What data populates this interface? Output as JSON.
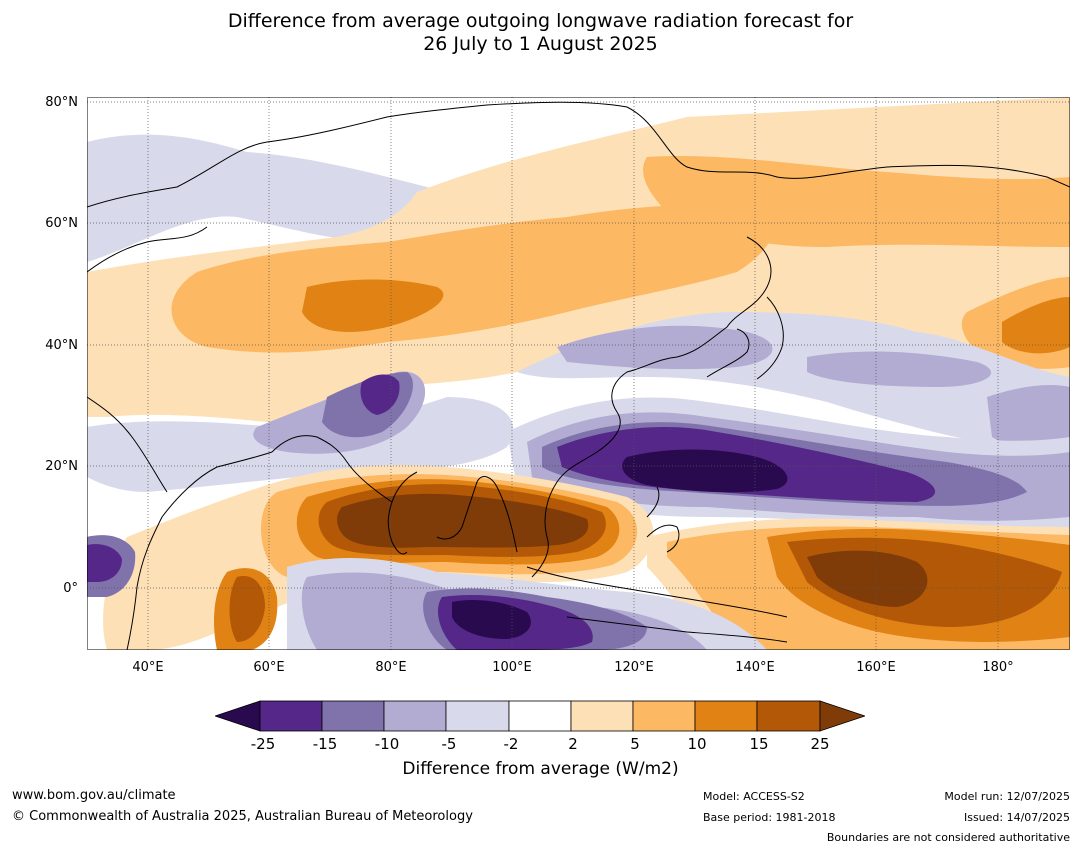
{
  "title": {
    "line1": "Difference from average outgoing longwave radiation forecast for",
    "line2": "26 July to 1 August 2025"
  },
  "map": {
    "lat_labels": [
      "80°N",
      "60°N",
      "40°N",
      "20°N",
      "0°"
    ],
    "lon_labels": [
      "40°E",
      "60°E",
      "80°E",
      "100°E",
      "120°E",
      "140°E",
      "160°E",
      "180°"
    ]
  },
  "colorbar": {
    "ticks": [
      "-25",
      "-15",
      "-10",
      "-5",
      "-2",
      "2",
      "5",
      "10",
      "15",
      "25"
    ],
    "colors": {
      "below_-25": "#2a0a4e",
      "-25_-15": "#542788",
      "-15_-10": "#8073ac",
      "-10_-5": "#b2abd2",
      "-5_-2": "#d8daeb",
      "-2_2": "#ffffff",
      "2_5": "#fee0b6",
      "5_10": "#fdb863",
      "10_15": "#e08214",
      "15_25": "#b35806",
      "above_25": "#7f3b08"
    },
    "label": "Difference from average (W/m2)"
  },
  "footer": {
    "website": "www.bom.gov.au/climate",
    "copyright": "© Commonwealth of Australia 2025, Australian Bureau of Meteorology",
    "model": "Model: ACCESS-S2",
    "base_period": "Base period: 1981-2018",
    "model_run": "Model run: 12/07/2025",
    "issued": "Issued: 14/07/2025",
    "disclaimer": "Boundaries are not considered authoritative"
  }
}
